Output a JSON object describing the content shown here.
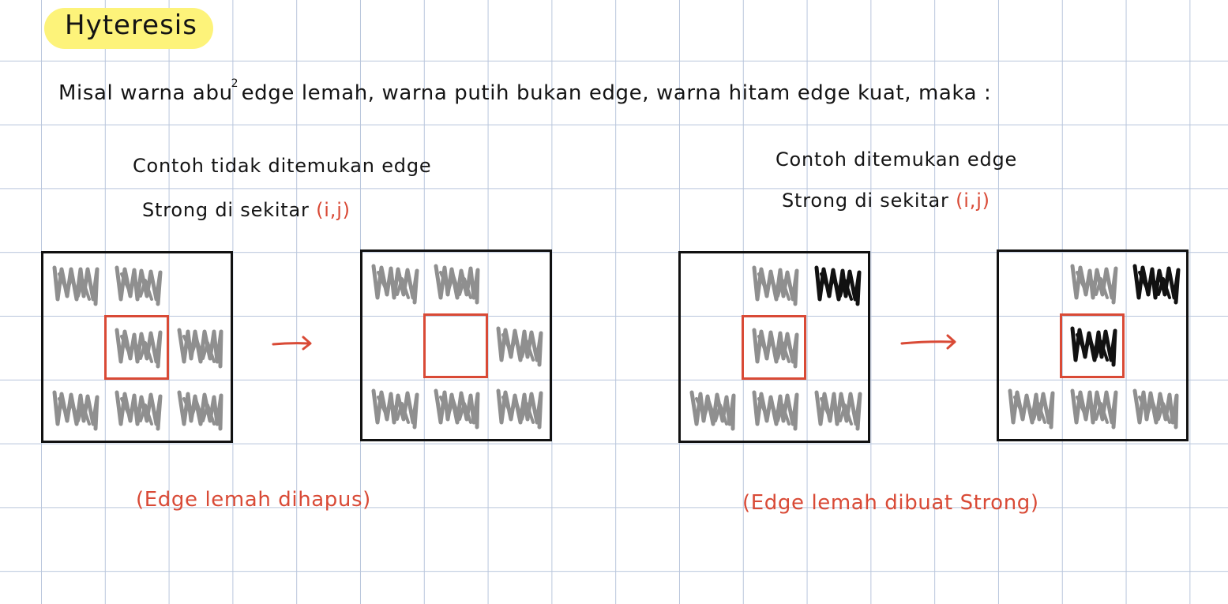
{
  "title": "Hyteresis",
  "intro": {
    "part1": "Misal warna abu",
    "sup": "2",
    "part2": "edge lemah, warna putih bukan edge, warna hitam edge kuat, maka :"
  },
  "left_example": {
    "caption_line1": "Contoh tidak ditemukan edge",
    "caption_line2": "Strong di sekitar",
    "coord": "(i,j)",
    "note": "(Edge lemah dihapus)"
  },
  "right_example": {
    "caption_line1": "Contoh ditemukan edge",
    "caption_line2": "Strong di sekitar",
    "coord": "(i,j)",
    "note": "(Edge lemah dibuat Strong)"
  },
  "legend_colors": {
    "weak_edge": "#8f8f8f",
    "strong_edge": "#111111",
    "non_edge": "#ffffff",
    "highlight_center": "#d94a36",
    "title_highlight": "#fdf37a"
  },
  "grids": [
    {
      "id": "left-before",
      "cells": [
        "weak",
        "weak",
        "none",
        "none",
        "weak",
        "weak",
        "weak",
        "weak",
        "weak"
      ]
    },
    {
      "id": "left-after",
      "cells": [
        "weak",
        "weak",
        "none",
        "none",
        "none",
        "weak",
        "weak",
        "weak",
        "weak"
      ]
    },
    {
      "id": "right-before",
      "cells": [
        "none",
        "weak",
        "strong",
        "none",
        "weak",
        "none",
        "weak",
        "weak",
        "weak"
      ]
    },
    {
      "id": "right-after",
      "cells": [
        "none",
        "weak",
        "strong",
        "none",
        "strong",
        "none",
        "weak",
        "weak",
        "weak"
      ]
    }
  ]
}
